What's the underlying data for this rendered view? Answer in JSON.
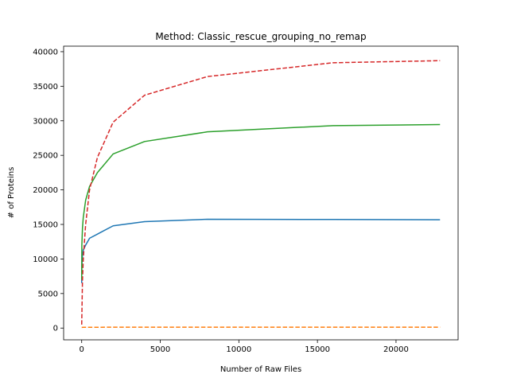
{
  "chart_data": {
    "type": "line",
    "title": "Method: Classic_rescue_grouping_no_remap",
    "xlabel": "Number of Raw Files",
    "ylabel": "# of Proteins",
    "xlim": [
      -1150,
      23950
    ],
    "ylim": [
      -1700,
      40800
    ],
    "xticks": [
      0,
      5000,
      10000,
      15000,
      20000
    ],
    "yticks": [
      0,
      5000,
      10000,
      15000,
      20000,
      25000,
      30000,
      35000,
      40000
    ],
    "grid": false,
    "legend": "none",
    "series": [
      {
        "color": "#1f77b4",
        "dash": "solid",
        "x": [
          1,
          10,
          50,
          100,
          250,
          500,
          1000,
          2000,
          4000,
          8000,
          16000,
          22800
        ],
        "y": [
          6500,
          9000,
          10500,
          11300,
          12000,
          13000,
          13600,
          14800,
          15400,
          15750,
          15720,
          15680
        ]
      },
      {
        "color": "#ff7f0e",
        "dash": "dashed",
        "x": [
          1,
          10,
          100,
          1000,
          4000,
          8000,
          16000,
          22800
        ],
        "y": [
          100,
          100,
          110,
          120,
          130,
          130,
          130,
          130
        ]
      },
      {
        "color": "#2ca02c",
        "dash": "solid",
        "x": [
          1,
          10,
          50,
          100,
          250,
          500,
          1000,
          2000,
          4000,
          8000,
          16000,
          22800
        ],
        "y": [
          7000,
          12000,
          14500,
          16000,
          18500,
          20500,
          22500,
          25200,
          27000,
          28400,
          29300,
          29450
        ]
      },
      {
        "color": "#d62728",
        "dash": "dashed",
        "x": [
          1,
          50,
          100,
          250,
          500,
          1000,
          2000,
          4000,
          8000,
          16000,
          22800
        ],
        "y": [
          500,
          7000,
          10000,
          15000,
          20000,
          24700,
          29800,
          33700,
          36400,
          38400,
          38700
        ]
      }
    ]
  }
}
